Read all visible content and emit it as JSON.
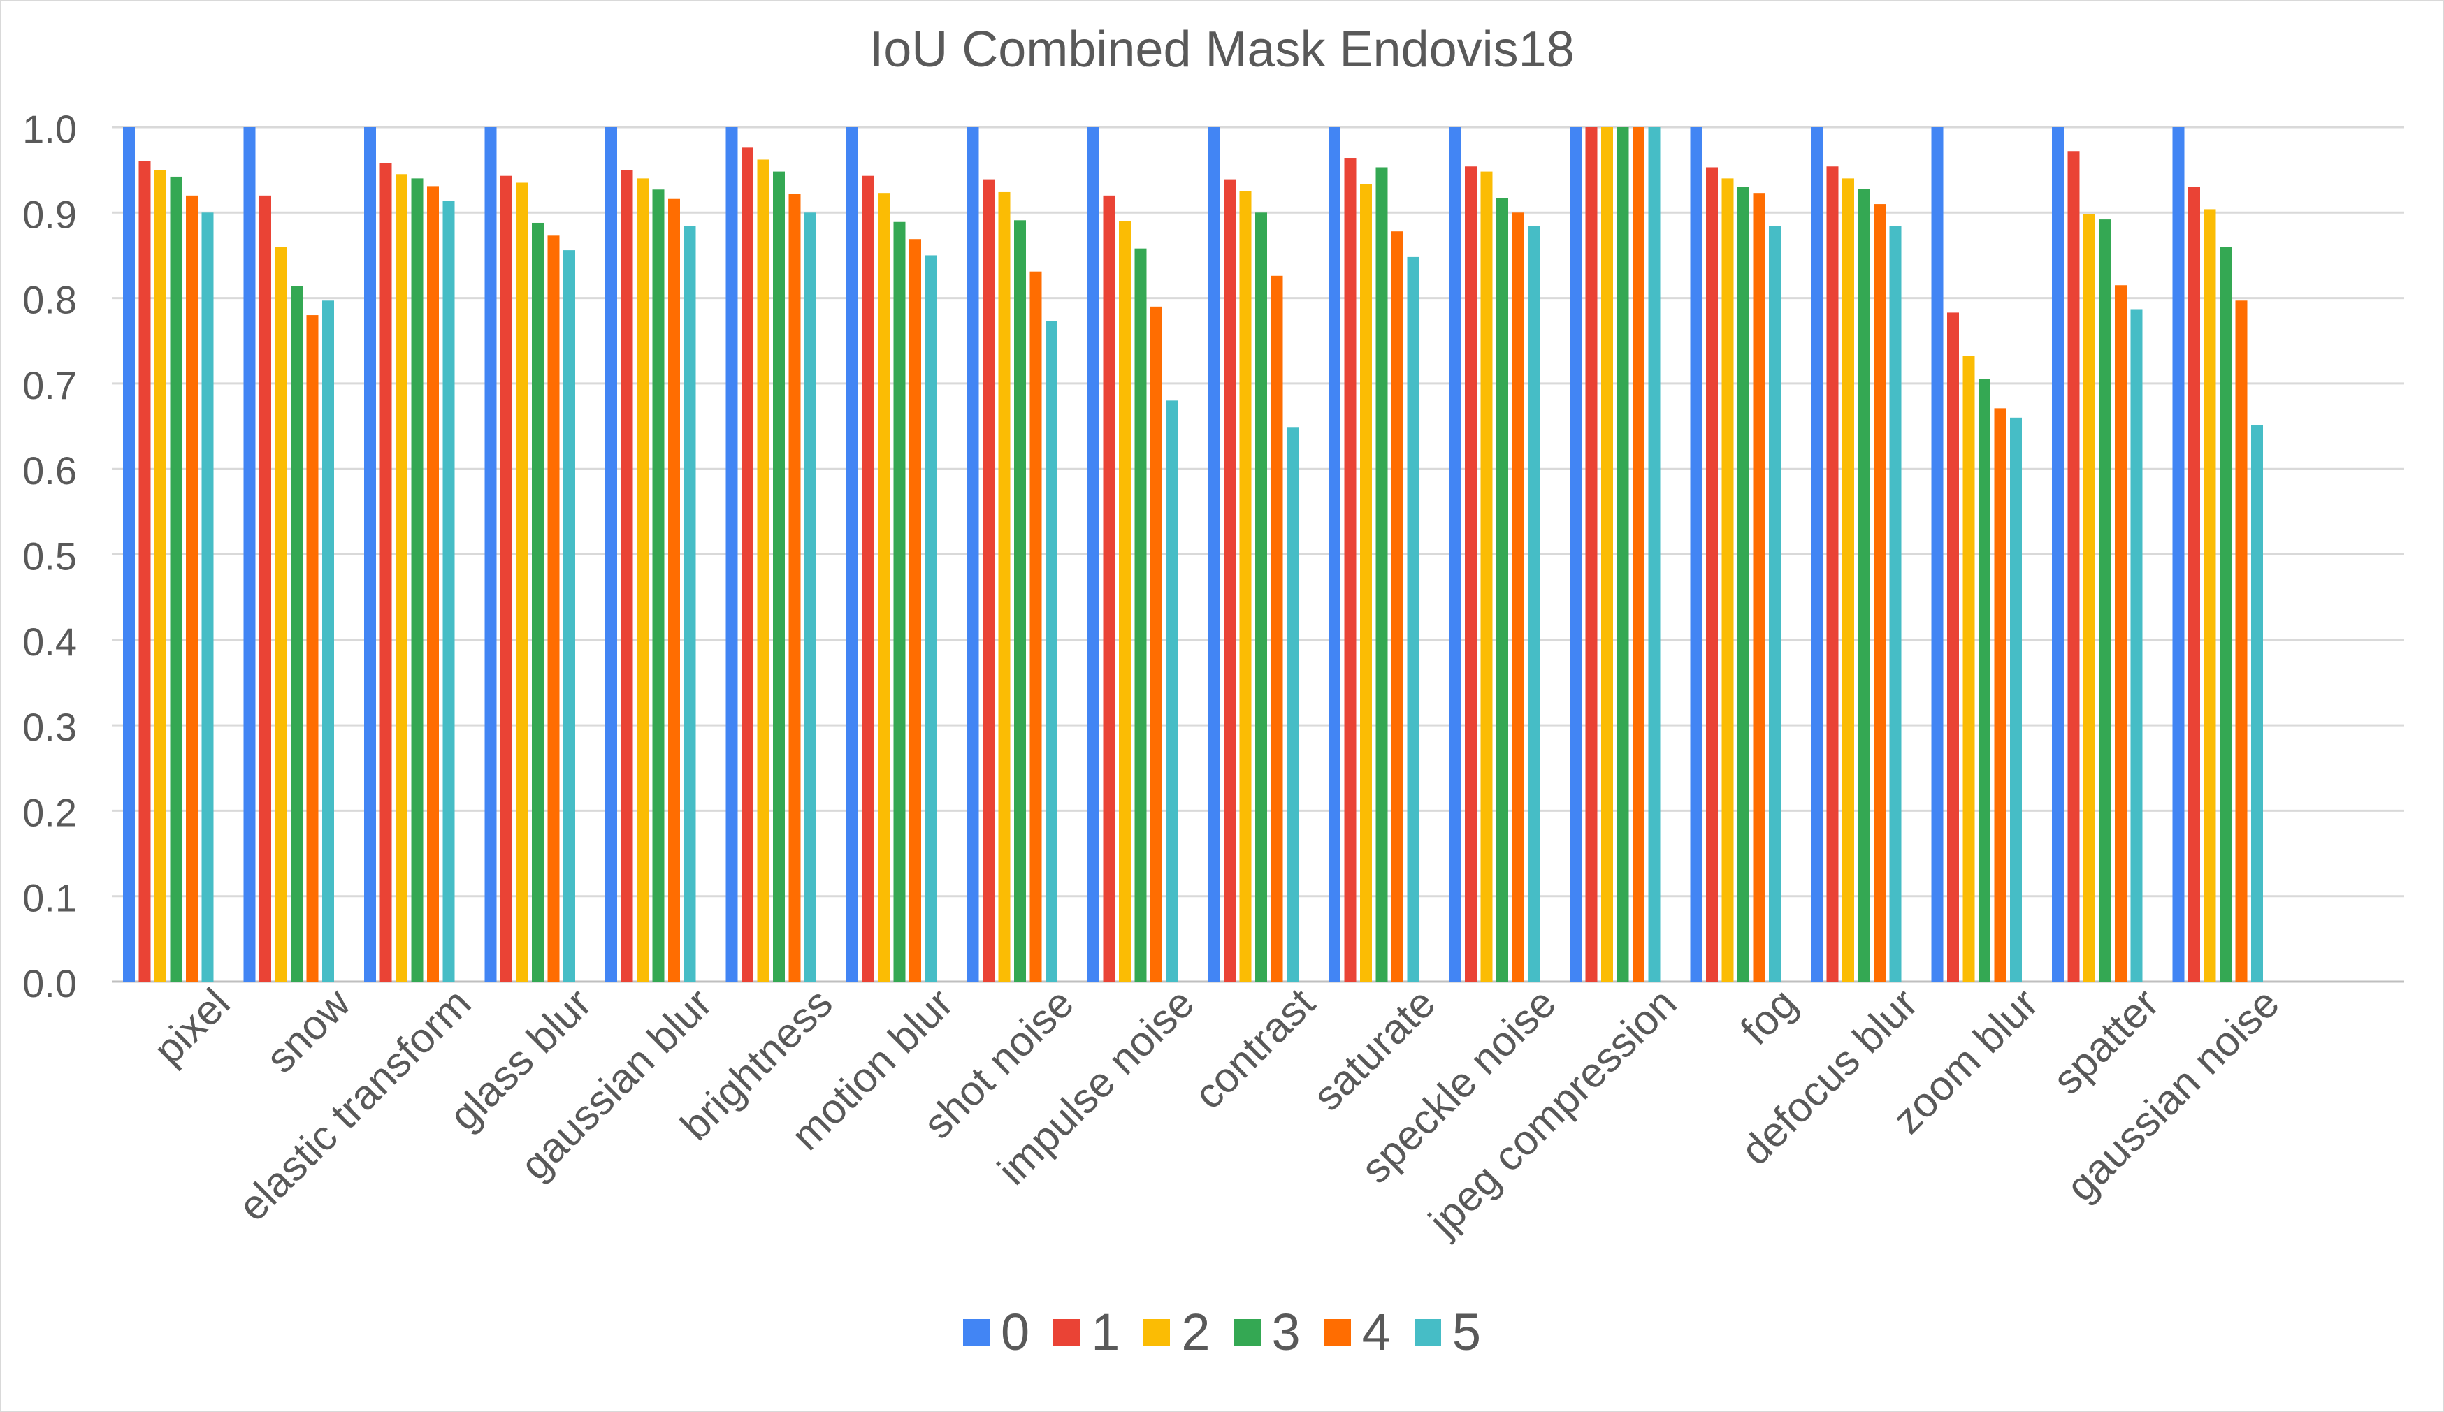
{
  "chart_data": {
    "type": "bar",
    "title": "IoU  Combined Mask Endovis18",
    "xlabel": "",
    "ylabel": "",
    "ylim": [
      0,
      1.0
    ],
    "yticks": [
      "0.0",
      "0.1",
      "0.2",
      "0.3",
      "0.4",
      "0.5",
      "0.6",
      "0.7",
      "0.8",
      "0.9",
      "1.0"
    ],
    "grid": true,
    "legend_position": "bottom",
    "categories": [
      "pixel",
      "snow",
      "elastic  transform",
      "glass  blur",
      "gaussian blur",
      "brightness",
      "motion blur",
      "shot noise",
      "impulse noise",
      "contrast",
      "saturate",
      "speckle noise",
      "jpeg compression",
      "fog",
      "defocus blur",
      "zoom blur",
      "spatter",
      "gaussian noise"
    ],
    "series": [
      {
        "name": "0",
        "color": "#4285f4",
        "values": [
          1.0,
          1.0,
          1.0,
          1.0,
          1.0,
          1.0,
          1.0,
          1.0,
          1.0,
          1.0,
          1.0,
          1.0,
          1.0,
          1.0,
          1.0,
          1.0,
          1.0,
          1.0
        ]
      },
      {
        "name": "1",
        "color": "#ea4335",
        "values": [
          0.96,
          0.92,
          0.958,
          0.943,
          0.95,
          0.976,
          0.943,
          0.939,
          0.92,
          0.939,
          0.964,
          0.954,
          1.0,
          0.953,
          0.954,
          0.783,
          0.972,
          0.93
        ]
      },
      {
        "name": "2",
        "color": "#fbbc04",
        "values": [
          0.95,
          0.86,
          0.945,
          0.935,
          0.94,
          0.962,
          0.923,
          0.924,
          0.89,
          0.925,
          0.933,
          0.948,
          1.0,
          0.94,
          0.94,
          0.732,
          0.898,
          0.904
        ]
      },
      {
        "name": "3",
        "color": "#34a853",
        "values": [
          0.942,
          0.814,
          0.94,
          0.888,
          0.927,
          0.948,
          0.889,
          0.891,
          0.858,
          0.9,
          0.953,
          0.917,
          1.0,
          0.93,
          0.928,
          0.705,
          0.892,
          0.86
        ]
      },
      {
        "name": "4",
        "color": "#ff6d01",
        "values": [
          0.92,
          0.78,
          0.931,
          0.873,
          0.916,
          0.922,
          0.869,
          0.831,
          0.79,
          0.826,
          0.878,
          0.9,
          1.0,
          0.923,
          0.91,
          0.671,
          0.815,
          0.797
        ]
      },
      {
        "name": "5",
        "color": "#46bdc6",
        "values": [
          0.9,
          0.797,
          0.914,
          0.856,
          0.884,
          0.9,
          0.85,
          0.773,
          0.68,
          0.649,
          0.848,
          0.884,
          1.0,
          0.884,
          0.884,
          0.66,
          0.787,
          0.651
        ]
      }
    ]
  }
}
